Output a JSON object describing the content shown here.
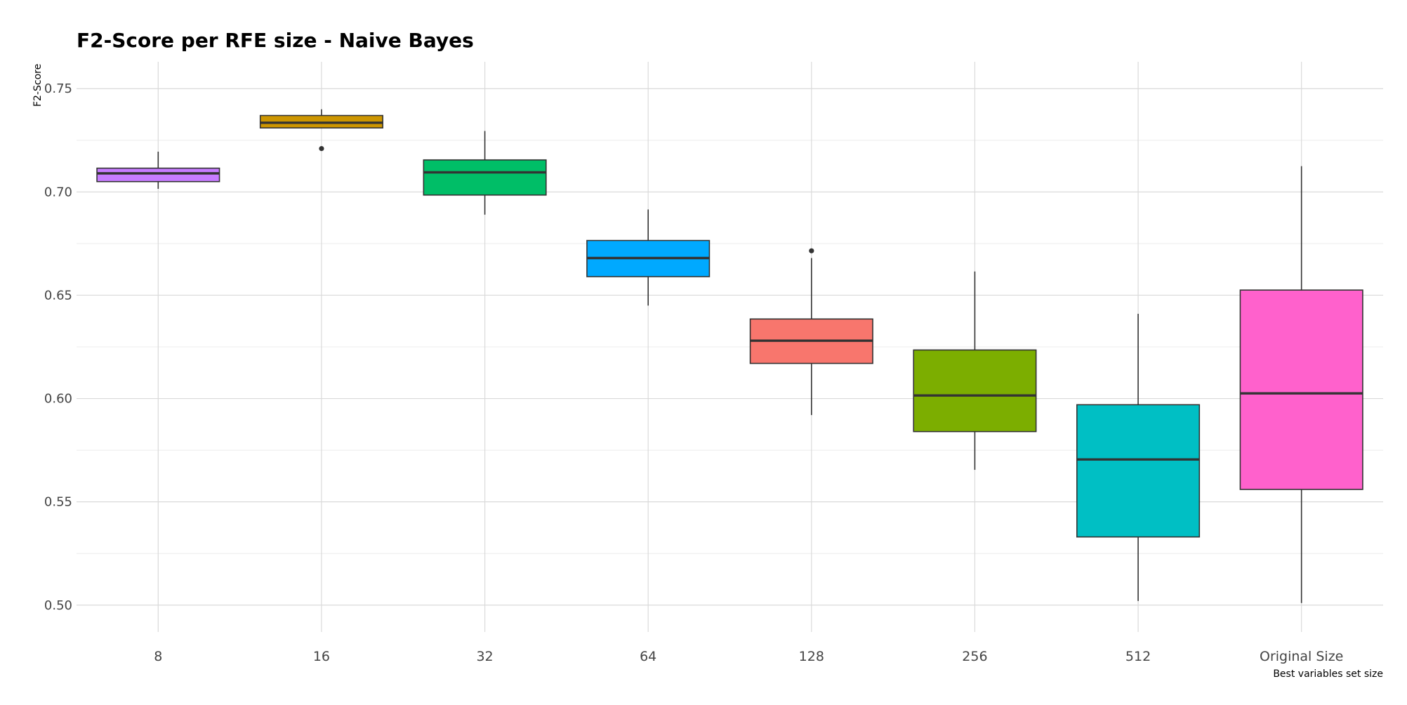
{
  "chart_data": {
    "type": "boxplot",
    "title": "F2-Score per RFE size - Naive Bayes",
    "xlabel": "Best variables set size",
    "ylabel": "F2-Score",
    "ylim": [
      0.487,
      0.763
    ],
    "y_ticks": [
      "0.50",
      "0.55",
      "0.60",
      "0.65",
      "0.70",
      "0.75"
    ],
    "y_tick_values": [
      0.5,
      0.55,
      0.6,
      0.65,
      0.7,
      0.75
    ],
    "grid": true,
    "legend": "none",
    "categories": [
      "8",
      "16",
      "32",
      "64",
      "128",
      "256",
      "512",
      "Original Size"
    ],
    "boxes": [
      {
        "category": "8",
        "whisker_low": 0.7015,
        "q1": 0.705,
        "median": 0.709,
        "q3": 0.7115,
        "whisker_high": 0.7195,
        "outliers": [],
        "color": "#C77CFF"
      },
      {
        "category": "16",
        "whisker_low": 0.731,
        "q1": 0.731,
        "median": 0.7335,
        "q3": 0.737,
        "whisker_high": 0.74,
        "outliers": [
          0.721
        ],
        "color": "#CD9600"
      },
      {
        "category": "32",
        "whisker_low": 0.689,
        "q1": 0.6985,
        "median": 0.7095,
        "q3": 0.7155,
        "whisker_high": 0.7295,
        "outliers": [],
        "color": "#00BE67"
      },
      {
        "category": "64",
        "whisker_low": 0.645,
        "q1": 0.659,
        "median": 0.668,
        "q3": 0.6765,
        "whisker_high": 0.6915,
        "outliers": [],
        "color": "#00A9FF"
      },
      {
        "category": "128",
        "whisker_low": 0.592,
        "q1": 0.617,
        "median": 0.628,
        "q3": 0.6385,
        "whisker_high": 0.668,
        "outliers": [
          0.6715
        ],
        "color": "#F8766D"
      },
      {
        "category": "256",
        "whisker_low": 0.5655,
        "q1": 0.584,
        "median": 0.6015,
        "q3": 0.6235,
        "whisker_high": 0.6615,
        "outliers": [],
        "color": "#7CAE00"
      },
      {
        "category": "512",
        "whisker_low": 0.502,
        "q1": 0.533,
        "median": 0.5705,
        "q3": 0.597,
        "whisker_high": 0.641,
        "outliers": [],
        "color": "#00BFC4"
      },
      {
        "category": "Original Size",
        "whisker_low": 0.501,
        "q1": 0.556,
        "median": 0.6025,
        "q3": 0.6525,
        "whisker_high": 0.7125,
        "outliers": [],
        "color": "#FF61CC"
      }
    ]
  }
}
